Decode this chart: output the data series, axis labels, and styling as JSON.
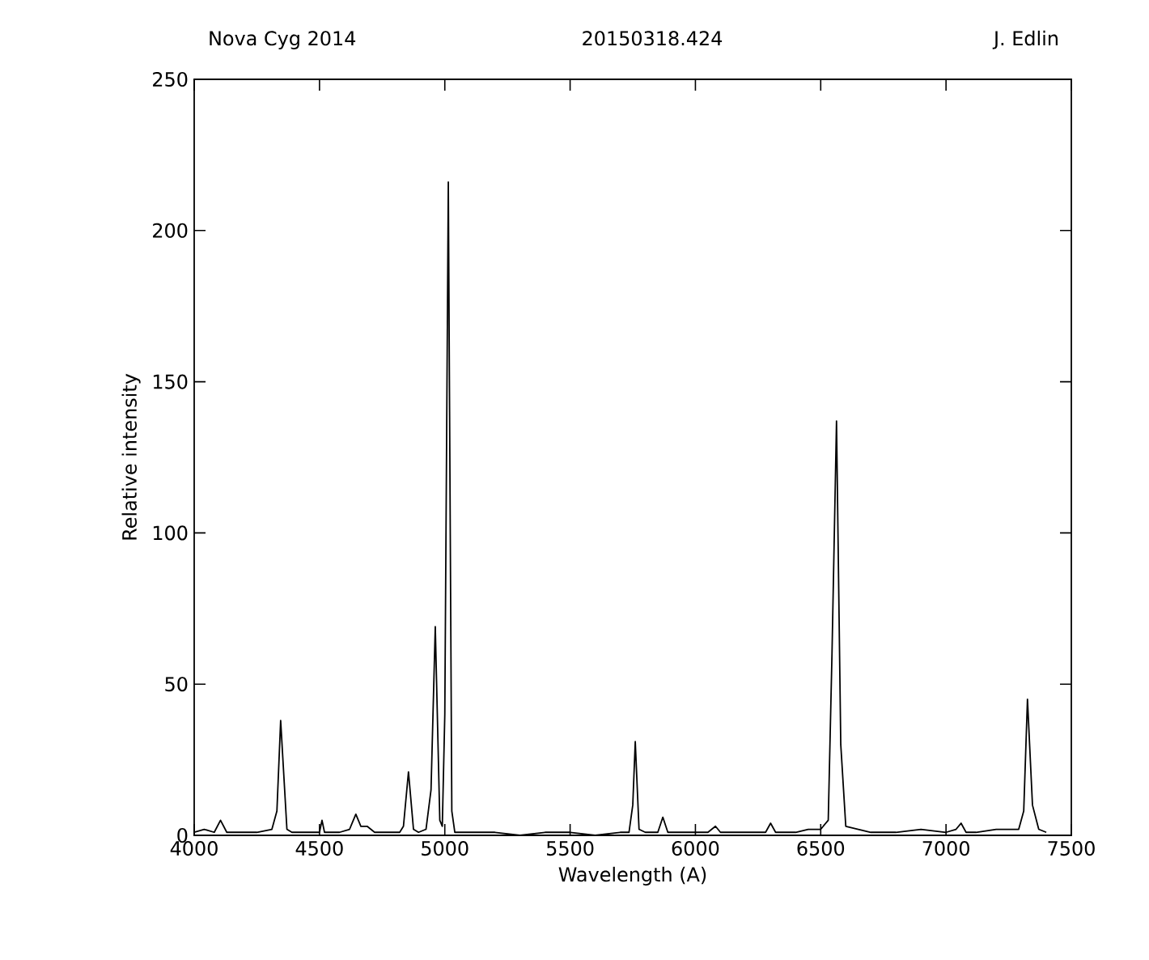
{
  "chart_data": {
    "type": "line",
    "title": "Nova Cyg 2014",
    "annotations": [
      "20150318.424",
      "J. Edlin"
    ],
    "xlabel": "Wavelength (A)",
    "ylabel": "Relative intensity",
    "xlim": [
      4000,
      7500
    ],
    "ylim": [
      0,
      250
    ],
    "xticks": [
      4000,
      4500,
      5000,
      5500,
      6000,
      6500,
      7000,
      7500
    ],
    "yticks": [
      0,
      50,
      100,
      150,
      200,
      250
    ],
    "marker": "none",
    "line_style": "solid",
    "series": [
      {
        "color": "#000000",
        "x": [
          4000,
          4040,
          4080,
          4105,
          4130,
          4180,
          4250,
          4310,
          4330,
          4345,
          4370,
          4390,
          4440,
          4500,
          4510,
          4520,
          4580,
          4620,
          4645,
          4665,
          4690,
          4720,
          4780,
          4820,
          4835,
          4855,
          4875,
          4895,
          4925,
          4945,
          4962,
          4980,
          4990,
          5000,
          5014,
          5028,
          5040,
          5100,
          5200,
          5300,
          5400,
          5500,
          5600,
          5700,
          5735,
          5750,
          5760,
          5775,
          5800,
          5850,
          5870,
          5890,
          5950,
          6000,
          6050,
          6080,
          6100,
          6200,
          6280,
          6300,
          6320,
          6350,
          6400,
          6450,
          6500,
          6530,
          6545,
          6563,
          6580,
          6600,
          6650,
          6700,
          6800,
          6900,
          7000,
          7040,
          7060,
          7080,
          7120,
          7200,
          7260,
          7290,
          7310,
          7325,
          7345,
          7370,
          7400
        ],
        "values": [
          1,
          2,
          1,
          5,
          1,
          1,
          1,
          2,
          8,
          38,
          2,
          1,
          1,
          1,
          5,
          1,
          1,
          2,
          7,
          3,
          3,
          1,
          1,
          1,
          3,
          21,
          2,
          1,
          2,
          15,
          69,
          5,
          3,
          40,
          216,
          8,
          1,
          1,
          1,
          0,
          1,
          1,
          0,
          1,
          1,
          10,
          31,
          2,
          1,
          1,
          6,
          1,
          1,
          1,
          1,
          3,
          1,
          1,
          1,
          4,
          1,
          1,
          1,
          2,
          2,
          5,
          60,
          137,
          30,
          3,
          2,
          1,
          1,
          2,
          1,
          2,
          4,
          1,
          1,
          2,
          2,
          2,
          8,
          45,
          10,
          2,
          1
        ]
      }
    ]
  }
}
